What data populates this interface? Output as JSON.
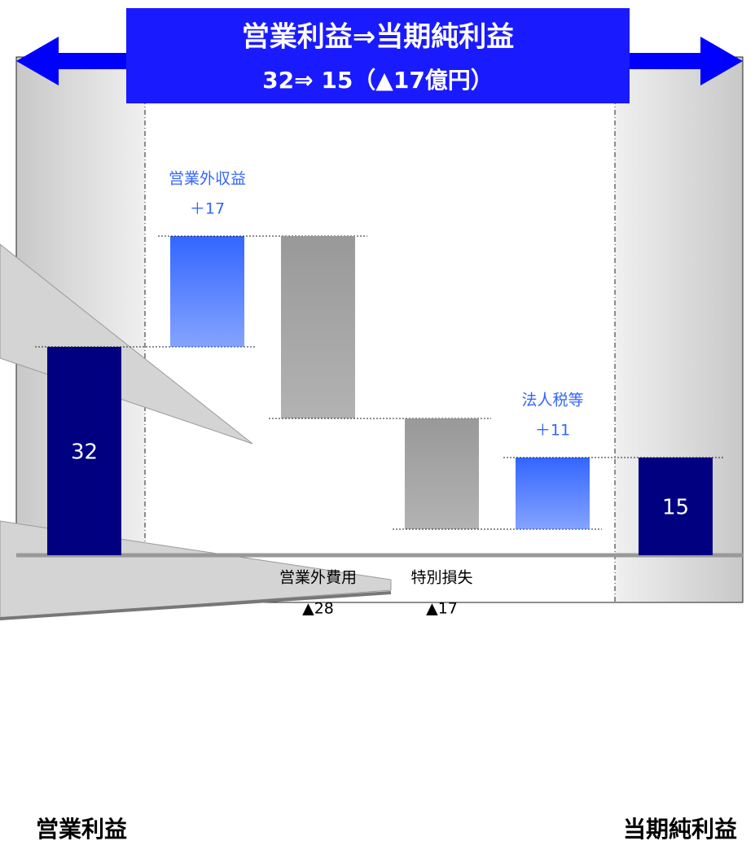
{
  "chart_data": {
    "type": "waterfall",
    "title": "営業利益⇒当期純利益",
    "subtitle": "32⇒ 15（▲17億円）",
    "categories": [
      "営業利益",
      "営業外収益",
      "営業外費用",
      "特別損失",
      "法人税等",
      "当期純利益"
    ],
    "values": [
      32,
      17,
      -28,
      -17,
      11,
      15
    ],
    "value_labels": [
      "32",
      "＋17",
      "▲28",
      "▲17",
      "＋11",
      "15"
    ],
    "color_total": "#000080",
    "color_increase": "#3366ff",
    "color_decrease": "#999999"
  }
}
